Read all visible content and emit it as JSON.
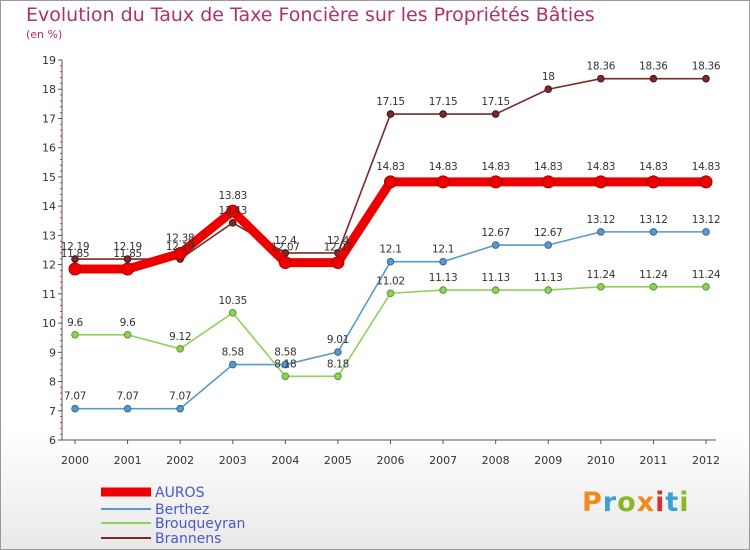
{
  "header": {
    "title": "Evolution du Taux de Taxe Foncière sur les Propriétés Bâties",
    "subtitle": "(en %)"
  },
  "logo": {
    "text": "Proxiti",
    "colors": [
      "#f08a1c",
      "#3aa0d8",
      "#88b82a",
      "#f08a1c",
      "#d8302a",
      "#3aa0d8",
      "#88b82a"
    ]
  },
  "chart_data": {
    "type": "line",
    "x": [
      "2000",
      "2001",
      "2002",
      "2003",
      "2004",
      "2005",
      "2006",
      "2007",
      "2008",
      "2009",
      "2010",
      "2011",
      "2012"
    ],
    "ylim": [
      6,
      19
    ],
    "yticks": [
      "6",
      "7",
      "8",
      "9",
      "10",
      "11",
      "12",
      "13",
      "14",
      "15",
      "16",
      "17",
      "18",
      "19"
    ],
    "grid": false,
    "legend_position": "bottom-left",
    "series": [
      {
        "name": "AUROS",
        "color": "#ee0000",
        "values": [
          11.85,
          11.85,
          12.38,
          13.83,
          12.07,
          12.07,
          14.83,
          14.83,
          14.83,
          14.83,
          14.83,
          14.83,
          14.83
        ],
        "labels": [
          "11.85",
          "11.85",
          "12.38",
          "13.83",
          "12.07",
          "12.07",
          "14.83",
          "14.83",
          "14.83",
          "14.83",
          "14.83",
          "14.83",
          "14.83"
        ]
      },
      {
        "name": "Berthez",
        "color": "#5b98cc",
        "values": [
          7.07,
          7.07,
          7.07,
          8.58,
          8.58,
          9.01,
          12.1,
          12.1,
          12.67,
          12.67,
          13.12,
          13.12,
          13.12
        ],
        "labels": [
          "7.07",
          "7.07",
          "7.07",
          "8.58",
          "8.58",
          "9.01",
          "12.1",
          "12.1",
          "12.67",
          "12.67",
          "13.12",
          "13.12",
          "13.12"
        ]
      },
      {
        "name": "Brouqueyran",
        "color": "#8fd15a",
        "values": [
          9.6,
          9.6,
          9.12,
          10.35,
          8.18,
          8.18,
          11.02,
          11.13,
          11.13,
          11.13,
          11.24,
          11.24,
          11.24
        ],
        "labels": [
          "9.6",
          "9.6",
          "9.12",
          "10.35",
          "8.18",
          "8.18",
          "11.02",
          "11.13",
          "11.13",
          "11.13",
          "11.24",
          "11.24",
          "11.24"
        ]
      },
      {
        "name": "Brannens",
        "color": "#7a2a2a",
        "values": [
          12.19,
          12.19,
          12.19,
          13.43,
          12.4,
          12.4,
          17.15,
          17.15,
          17.15,
          18.0,
          18.36,
          18.36,
          18.36
        ],
        "labels": [
          "12.19",
          "12.19",
          "12.19",
          "13.43",
          "12.4",
          "12.4",
          "17.15",
          "17.15",
          "17.15",
          "18",
          "18.36",
          "18.36",
          "18.36"
        ]
      }
    ]
  }
}
